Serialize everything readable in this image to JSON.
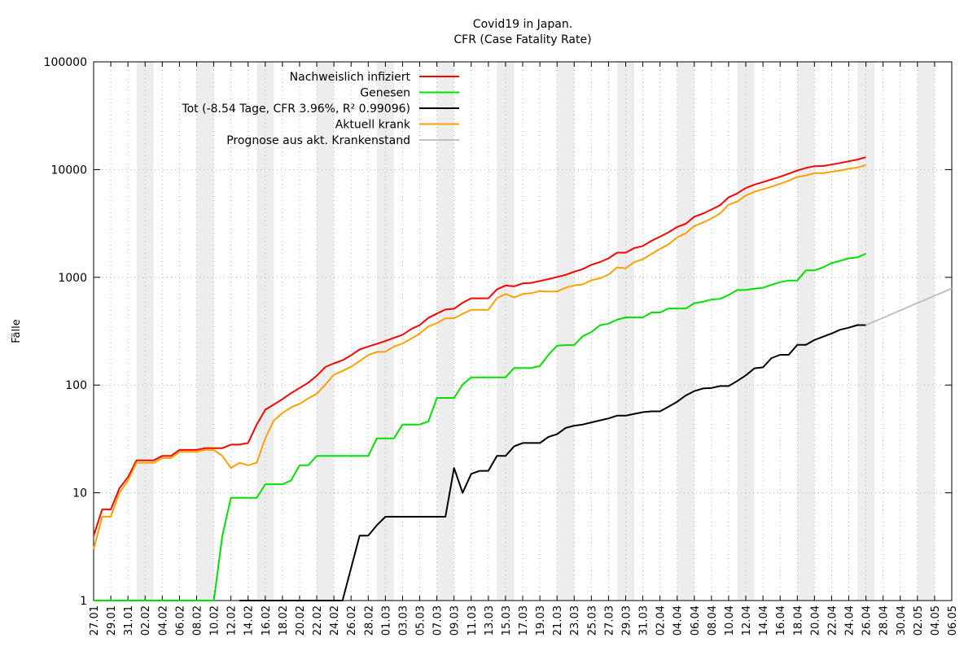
{
  "chart_data": {
    "type": "line",
    "title": "Covid19 in Japan.",
    "subtitle": "CFR (Case Fatality Rate)",
    "ylabel": "Fälle",
    "xlabel": "",
    "yscale": "log",
    "ylim": [
      1,
      100000
    ],
    "y_ticks": [
      "1",
      "10",
      "100",
      "1000",
      "10000",
      "100000"
    ],
    "x_tick_labels": [
      "27.01",
      "29.01",
      "31.01",
      "02.02",
      "04.02",
      "06.02",
      "08.02",
      "10.02",
      "12.02",
      "14.02",
      "16.02",
      "18.02",
      "20.02",
      "22.02",
      "24.02",
      "26.02",
      "28.02",
      "01.03",
      "03.03",
      "05.03",
      "07.03",
      "09.03",
      "11.03",
      "13.03",
      "15.03",
      "17.03",
      "19.03",
      "21.03",
      "23.03",
      "25.03",
      "27.03",
      "29.03",
      "31.03",
      "02.04",
      "04.04",
      "06.04",
      "08.04",
      "10.04",
      "12.04",
      "14.04",
      "16.04",
      "18.04",
      "20.04",
      "22.04",
      "24.04",
      "26.04",
      "28.04",
      "30.04",
      "02.05",
      "04.05",
      "06.05"
    ],
    "x_unit": "day",
    "x_start": "27.01",
    "x_end": "06.05",
    "grid": true,
    "weekend_shading": true,
    "legend_position": "top-center",
    "series": [
      {
        "name": "Nachweislich infiziert",
        "color": "#ff0000",
        "x": [
          "27.01",
          "28.01",
          "29.01",
          "30.01",
          "31.01",
          "01.02",
          "02.02",
          "03.02",
          "04.02",
          "05.02",
          "06.02",
          "07.02",
          "08.02",
          "09.02",
          "10.02",
          "11.02",
          "12.02",
          "13.02",
          "14.02",
          "15.02",
          "16.02",
          "17.02",
          "18.02",
          "19.02",
          "20.02",
          "21.02",
          "22.02",
          "23.02",
          "24.02",
          "25.02",
          "26.02",
          "27.02",
          "28.02",
          "29.02",
          "01.03",
          "02.03",
          "03.03",
          "04.03",
          "05.03",
          "06.03",
          "07.03",
          "08.03",
          "09.03",
          "10.03",
          "11.03",
          "12.03",
          "13.03",
          "14.03",
          "15.03",
          "16.03",
          "17.03",
          "18.03",
          "19.03",
          "20.03",
          "21.03",
          "22.03",
          "23.03",
          "24.03",
          "25.03",
          "26.03",
          "27.03",
          "28.03",
          "29.03",
          "30.03",
          "31.03",
          "01.04",
          "02.04",
          "03.04",
          "04.04",
          "05.04",
          "06.04",
          "07.04",
          "08.04",
          "09.04",
          "10.04",
          "11.04",
          "12.04",
          "13.04",
          "14.04",
          "15.04",
          "16.04",
          "17.04",
          "18.04",
          "19.04",
          "20.04",
          "21.04",
          "22.04",
          "23.04",
          "24.04",
          "25.04",
          "26.04"
        ],
        "values": [
          4,
          7,
          7,
          11,
          14,
          20,
          20,
          20,
          22,
          22,
          25,
          25,
          25,
          26,
          26,
          26,
          28,
          28,
          29,
          43,
          59,
          66,
          74,
          84,
          94,
          105,
          122,
          147,
          159,
          170,
          189,
          214,
          228,
          241,
          256,
          274,
          293,
          331,
          360,
          420,
          461,
          502,
          511,
          581,
          639,
          639,
          639,
          773,
          839,
          825,
          878,
          889,
          924,
          963,
          1007,
          1054,
          1128,
          1193,
          1307,
          1387,
          1499,
          1693,
          1693,
          1866,
          1953,
          2178,
          2381,
          2617,
          2935,
          3139,
          3654,
          3906,
          4257,
          4667,
          5530,
          6005,
          6748,
          7255,
          7645,
          8100,
          8582,
          9167,
          9787,
          10361,
          10751,
          10797,
          11135,
          11512,
          11950,
          12388,
          13031
        ]
      },
      {
        "name": "Genesen",
        "color": "#00e000",
        "x": [
          "27.01",
          "28.01",
          "29.01",
          "30.01",
          "31.01",
          "01.02",
          "02.02",
          "03.02",
          "04.02",
          "05.02",
          "06.02",
          "07.02",
          "08.02",
          "09.02",
          "10.02",
          "11.02",
          "12.02",
          "13.02",
          "14.02",
          "15.02",
          "16.02",
          "17.02",
          "18.02",
          "19.02",
          "20.02",
          "21.02",
          "22.02",
          "23.02",
          "24.02",
          "25.02",
          "26.02",
          "27.02",
          "28.02",
          "29.02",
          "01.03",
          "02.03",
          "03.03",
          "04.03",
          "05.03",
          "06.03",
          "07.03",
          "08.03",
          "09.03",
          "10.03",
          "11.03",
          "12.03",
          "13.03",
          "14.03",
          "15.03",
          "16.03",
          "17.03",
          "18.03",
          "19.03",
          "20.03",
          "21.03",
          "22.03",
          "23.03",
          "24.03",
          "25.03",
          "26.03",
          "27.03",
          "28.03",
          "29.03",
          "30.03",
          "31.03",
          "01.04",
          "02.04",
          "03.04",
          "04.04",
          "05.04",
          "06.04",
          "07.04",
          "08.04",
          "09.04",
          "10.04",
          "11.04",
          "12.04",
          "13.04",
          "14.04",
          "15.04",
          "16.04",
          "17.04",
          "18.04",
          "19.04",
          "20.04",
          "21.04",
          "22.04",
          "23.04",
          "24.04",
          "25.04",
          "26.04"
        ],
        "values": [
          1,
          1,
          1,
          1,
          1,
          1,
          1,
          1,
          1,
          1,
          1,
          1,
          1,
          1,
          1,
          4,
          9,
          9,
          9,
          9,
          12,
          12,
          12,
          13,
          18,
          18,
          22,
          22,
          22,
          22,
          22,
          22,
          22,
          32,
          32,
          32,
          43,
          43,
          43,
          46,
          76,
          76,
          76,
          101,
          118,
          118,
          118,
          118,
          118,
          144,
          144,
          144,
          150,
          191,
          232,
          235,
          235,
          284,
          310,
          359,
          372,
          404,
          424,
          424,
          424,
          472,
          472,
          514,
          514,
          514,
          575,
          592,
          622,
          632,
          685,
          762,
          762,
          784,
          799,
          853,
          901,
          935,
          935,
          1159,
          1159,
          1239,
          1356,
          1424,
          1500,
          1530,
          1658
        ]
      },
      {
        "name": "Tot (-8.54 Tage, CFR 3.96%, R² 0.99096)",
        "color": "#000000",
        "x": [
          "13.02",
          "14.02",
          "15.02",
          "16.02",
          "17.02",
          "18.02",
          "19.02",
          "20.02",
          "21.02",
          "22.02",
          "23.02",
          "24.02",
          "25.02",
          "26.02",
          "27.02",
          "28.02",
          "29.02",
          "01.03",
          "02.03",
          "03.03",
          "04.03",
          "05.03",
          "06.03",
          "07.03",
          "08.03",
          "09.03",
          "10.03",
          "11.03",
          "12.03",
          "13.03",
          "14.03",
          "15.03",
          "16.03",
          "17.03",
          "18.03",
          "19.03",
          "20.03",
          "21.03",
          "22.03",
          "23.03",
          "24.03",
          "25.03",
          "26.03",
          "27.03",
          "28.03",
          "29.03",
          "30.03",
          "31.03",
          "01.04",
          "02.04",
          "03.04",
          "04.04",
          "05.04",
          "06.04",
          "07.04",
          "08.04",
          "09.04",
          "10.04",
          "11.04",
          "12.04",
          "13.04",
          "14.04",
          "15.04",
          "16.04",
          "17.04",
          "18.04",
          "19.04",
          "20.04",
          "21.04",
          "22.04",
          "23.04",
          "24.04",
          "25.04",
          "26.04"
        ],
        "values": [
          1,
          1,
          1,
          1,
          1,
          1,
          1,
          1,
          1,
          1,
          1,
          1,
          1,
          2,
          4,
          4,
          5,
          6,
          6,
          6,
          6,
          6,
          6,
          6,
          6,
          17,
          10,
          15,
          16,
          16,
          22,
          22,
          27,
          29,
          29,
          29,
          33,
          35,
          40,
          42,
          43,
          45,
          47,
          49,
          52,
          52,
          54,
          56,
          57,
          57,
          63,
          70,
          80,
          88,
          93,
          94,
          98,
          98,
          109,
          123,
          143,
          146,
          178,
          191,
          191,
          236,
          236,
          262,
          281,
          301,
          326,
          341,
          360,
          360
        ]
      },
      {
        "name": "Aktuell krank",
        "color": "#ffa000",
        "x": [
          "27.01",
          "28.01",
          "29.01",
          "30.01",
          "31.01",
          "01.02",
          "02.02",
          "03.02",
          "04.02",
          "05.02",
          "06.02",
          "07.02",
          "08.02",
          "09.02",
          "10.02",
          "11.02",
          "12.02",
          "13.02",
          "14.02",
          "15.02",
          "16.02",
          "17.02",
          "18.02",
          "19.02",
          "20.02",
          "21.02",
          "22.02",
          "23.02",
          "24.02",
          "25.02",
          "26.02",
          "27.02",
          "28.02",
          "29.02",
          "01.03",
          "02.03",
          "03.03",
          "04.03",
          "05.03",
          "06.03",
          "07.03",
          "08.03",
          "09.03",
          "10.03",
          "11.03",
          "12.03",
          "13.03",
          "14.03",
          "15.03",
          "16.03",
          "17.03",
          "18.03",
          "19.03",
          "20.03",
          "21.03",
          "22.03",
          "23.03",
          "24.03",
          "25.03",
          "26.03",
          "27.03",
          "28.03",
          "29.03",
          "30.03",
          "31.03",
          "01.04",
          "02.04",
          "03.04",
          "04.04",
          "05.04",
          "06.04",
          "07.04",
          "08.04",
          "09.04",
          "10.04",
          "11.04",
          "12.04",
          "13.04",
          "14.04",
          "15.04",
          "16.04",
          "17.04",
          "18.04",
          "19.04",
          "20.04",
          "21.04",
          "22.04",
          "23.04",
          "24.04",
          "25.04",
          "26.04"
        ],
        "values": [
          3,
          6,
          6,
          10,
          13,
          19,
          19,
          19,
          21,
          21,
          24,
          24,
          24,
          25,
          25,
          22,
          17,
          19,
          18,
          19,
          32,
          47,
          55,
          62,
          67,
          75,
          83,
          101,
          125,
          135,
          148,
          167,
          190,
          203,
          204,
          228,
          243,
          270,
          300,
          350,
          376,
          416,
          418,
          458,
          500,
          500,
          500,
          641,
          700,
          650,
          700,
          712,
          745,
          738,
          737,
          802,
          840,
          860,
          940,
          980,
          1059,
          1237,
          1212,
          1385,
          1470,
          1647,
          1834,
          2023,
          2348,
          2558,
          2993,
          3226,
          3519,
          3918,
          4738,
          5045,
          5756,
          6219,
          6560,
          6945,
          7389,
          7882,
          8520,
          8811,
          9265,
          9286,
          9537,
          9807,
          10149,
          10465,
          10994
        ]
      },
      {
        "name": "Prognose aus akt. Krankenstand",
        "color": "#c0c0c0",
        "x": [
          "26.04",
          "06.05"
        ],
        "values": [
          360,
          790
        ]
      }
    ]
  }
}
